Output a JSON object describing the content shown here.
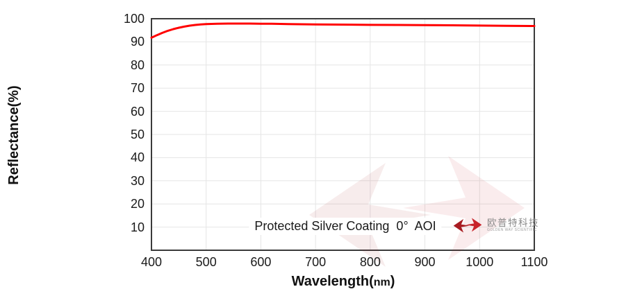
{
  "chart_data": {
    "type": "line",
    "title": "",
    "xlabel_main": "Wavelength(",
    "xlabel_unit": "nm",
    "xlabel_close": ")",
    "ylabel": "Reflectance(%)",
    "xlim": [
      400,
      1100
    ],
    "ylim": [
      0,
      100
    ],
    "x_ticks": [
      400,
      500,
      600,
      700,
      800,
      900,
      1000,
      1100
    ],
    "y_ticks": [
      10,
      20,
      30,
      40,
      50,
      60,
      70,
      80,
      90,
      100
    ],
    "grid": true,
    "legend_position": "none",
    "annotation": "Protected Silver Coating  0°  AOI",
    "frame_color": "#3a3a3a",
    "grid_color": "#e5e5e5",
    "line_color": "#ff0000",
    "series": [
      {
        "name": "Protected Silver Coating 0° AOI",
        "x": [
          400,
          410,
          420,
          430,
          440,
          450,
          460,
          470,
          480,
          490,
          500,
          520,
          540,
          560,
          580,
          600,
          620,
          650,
          700,
          750,
          800,
          850,
          900,
          950,
          1000,
          1050,
          1100
        ],
        "y": [
          91.8,
          92.9,
          93.9,
          94.8,
          95.5,
          96.1,
          96.6,
          97.0,
          97.3,
          97.55,
          97.7,
          97.85,
          97.9,
          97.9,
          97.9,
          97.85,
          97.8,
          97.7,
          97.55,
          97.45,
          97.35,
          97.3,
          97.25,
          97.15,
          97.05,
          96.95,
          96.85
        ]
      }
    ]
  },
  "logo": {
    "cn_text": "欧普特科技",
    "en_text": "GOLDEN WAY SCIENTIFIC",
    "mark_color_left": "#a81c22",
    "mark_color_right": "#c8232a"
  }
}
